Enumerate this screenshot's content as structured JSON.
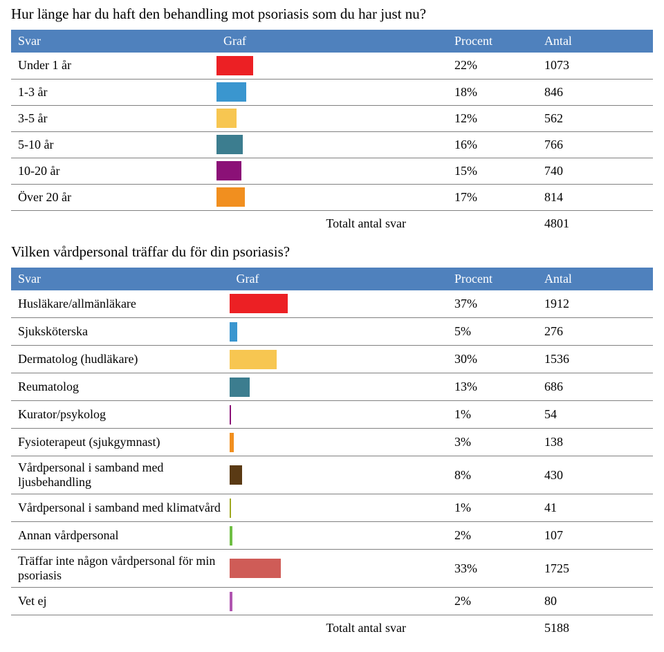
{
  "bar_track_width_pct": 72,
  "q1": {
    "question": "Hur länge har du haft den behandling mot psoriasis som du har just nu?",
    "header": {
      "svar": "Svar",
      "graf": "Graf",
      "procent": "Procent",
      "antal": "Antal"
    },
    "rows": [
      {
        "label": "Under 1 år",
        "pct": "22%",
        "pct_val": 22,
        "count": "1073",
        "color": "#ec2024"
      },
      {
        "label": "1-3 år",
        "pct": "18%",
        "pct_val": 18,
        "count": "846",
        "color": "#3a96cf"
      },
      {
        "label": "3-5 år",
        "pct": "12%",
        "pct_val": 12,
        "count": "562",
        "color": "#f7c651"
      },
      {
        "label": "5-10 år",
        "pct": "16%",
        "pct_val": 16,
        "count": "766",
        "color": "#3c7d8f"
      },
      {
        "label": "10-20 år",
        "pct": "15%",
        "pct_val": 15,
        "count": "740",
        "color": "#8b1177"
      },
      {
        "label": "Över 20 år",
        "pct": "17%",
        "pct_val": 17,
        "count": "814",
        "color": "#f18f1f"
      }
    ],
    "total_label": "Totalt antal svar",
    "total_value": "4801"
  },
  "q2": {
    "question": "Vilken vårdpersonal träffar du för din psoriasis?",
    "header": {
      "svar": "Svar",
      "graf": "Graf",
      "procent": "Procent",
      "antal": "Antal"
    },
    "rows": [
      {
        "label": "Husläkare/allmänläkare",
        "pct": "37%",
        "pct_val": 37,
        "count": "1912",
        "color": "#ec2024"
      },
      {
        "label": "Sjuksköterska",
        "pct": "5%",
        "pct_val": 5,
        "count": "276",
        "color": "#3a96cf"
      },
      {
        "label": "Dermatolog (hudläkare)",
        "pct": "30%",
        "pct_val": 30,
        "count": "1536",
        "color": "#f7c651"
      },
      {
        "label": "Reumatolog",
        "pct": "13%",
        "pct_val": 13,
        "count": "686",
        "color": "#3c7d8f"
      },
      {
        "label": "Kurator/psykolog",
        "pct": "1%",
        "pct_val": 1,
        "count": "54",
        "color": "#8b1177"
      },
      {
        "label": "Fysioterapeut (sjukgymnast)",
        "pct": "3%",
        "pct_val": 3,
        "count": "138",
        "color": "#f18f1f"
      },
      {
        "label": "Vårdpersonal i samband med ljusbehandling",
        "pct": "8%",
        "pct_val": 8,
        "count": "430",
        "color": "#5a3a14"
      },
      {
        "label": "Vårdpersonal i samband med klimatvård",
        "pct": "1%",
        "pct_val": 1,
        "count": "41",
        "color": "#9fa820"
      },
      {
        "label": "Annan vårdpersonal",
        "pct": "2%",
        "pct_val": 2,
        "count": "107",
        "color": "#6fbf44"
      },
      {
        "label": "Träffar inte någon vårdpersonal för min psoriasis",
        "pct": "33%",
        "pct_val": 33,
        "count": "1725",
        "color": "#cf5c57"
      },
      {
        "label": "Vet ej",
        "pct": "2%",
        "pct_val": 2,
        "count": "80",
        "color": "#b055b0"
      }
    ],
    "total_label": "Totalt antal svar",
    "total_value": "5188"
  }
}
